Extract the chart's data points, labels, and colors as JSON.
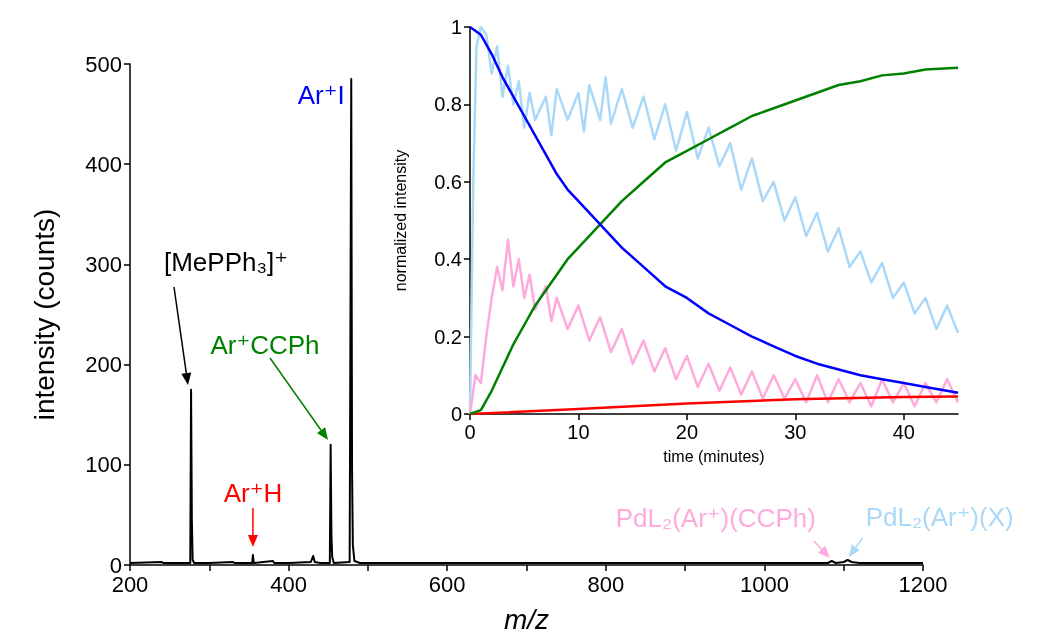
{
  "chart_data": [
    {
      "type": "line",
      "xlabel": "m/z",
      "ylabel": "intensity (counts)",
      "xlim": [
        200,
        1200
      ],
      "ylim": [
        0,
        500
      ],
      "xticks": [
        200,
        {
          "value": 300,
          "label": null
        },
        400,
        {
          "value": 500,
          "label": null
        },
        600,
        {
          "value": 700,
          "label": null
        },
        800,
        {
          "value": 900,
          "label": null
        },
        1000,
        {
          "value": 1100,
          "label": null
        },
        1200
      ],
      "yticks": [
        0,
        100,
        200,
        300,
        400,
        500
      ],
      "grid": false,
      "marker": "none",
      "line_style": "solid",
      "series": [
        {
          "color": "#000000",
          "x": [
            200,
            240,
            242,
            270,
            276,
            277,
            278,
            279,
            281,
            300,
            330,
            332,
            354,
            355,
            356,
            380,
            382,
            400,
            428,
            431,
            433,
            440,
            452,
            453,
            454,
            455,
            457,
            477,
            479,
            480,
            481,
            483,
            490,
            600,
            800,
            1000,
            1080,
            1085,
            1090,
            1100,
            1105,
            1110,
            1120,
            1200
          ],
          "values": [
            2,
            3,
            2,
            2,
            2,
            175,
            45,
            5,
            2,
            2,
            3,
            2,
            2,
            10,
            2,
            4,
            2,
            2,
            3,
            9,
            3,
            2,
            2,
            120,
            30,
            8,
            2,
            3,
            485,
            95,
            20,
            4,
            2,
            2,
            2,
            2,
            2,
            4,
            2,
            3,
            5,
            3,
            2,
            2
          ]
        }
      ],
      "annotations": [
        "[MePPh₃]⁺",
        "Ar⁺CCPh",
        {
          "text": "Ar⁺H",
          "x": 355,
          "y": 10
        },
        {
          "text": "Ar⁺I",
          "x": 479,
          "y": 485
        },
        {
          "text": "PdL₂(Ar⁺)(CCPh)",
          "x": 1085,
          "y": 4
        },
        {
          "text": "PdL₂(Ar⁺)(X)",
          "x": 1105,
          "y": 5
        }
      ]
    },
    {
      "type": "line",
      "xlabel": "time (minutes)",
      "ylabel": "normalized intensity",
      "xlim": [
        0,
        45
      ],
      "ylim": [
        0,
        1
      ],
      "xticks": [
        0,
        10,
        20,
        30,
        40
      ],
      "yticks": [
        0,
        0.2,
        0.4,
        0.6,
        0.8,
        1
      ],
      "grid": false,
      "marker": "none",
      "line_style": "solid",
      "series": [
        {
          "color": "#aad8f8",
          "x": [
            0,
            0.3,
            0.6,
            1,
            1.5,
            2,
            2.5,
            3,
            3.5,
            4,
            4.5,
            5,
            5.5,
            6,
            7,
            7.5,
            8,
            9,
            10,
            10.5,
            11,
            12,
            12.5,
            13,
            14,
            15,
            16,
            17,
            18,
            19,
            20,
            21,
            22,
            23,
            24,
            25,
            26,
            27,
            28,
            29,
            30,
            31,
            32,
            33,
            34,
            35,
            36,
            37,
            38,
            39,
            40,
            41,
            42,
            43,
            44,
            45
          ],
          "values": [
            0,
            0.6,
            0.95,
            1,
            0.98,
            0.88,
            0.95,
            0.82,
            0.9,
            0.8,
            0.86,
            0.74,
            0.83,
            0.76,
            0.82,
            0.72,
            0.84,
            0.76,
            0.83,
            0.73,
            0.85,
            0.76,
            0.87,
            0.75,
            0.84,
            0.74,
            0.82,
            0.71,
            0.8,
            0.68,
            0.78,
            0.66,
            0.74,
            0.64,
            0.7,
            0.58,
            0.66,
            0.55,
            0.6,
            0.5,
            0.56,
            0.46,
            0.52,
            0.42,
            0.48,
            0.38,
            0.42,
            0.34,
            0.39,
            0.3,
            0.34,
            0.26,
            0.3,
            0.22,
            0.28,
            0.21
          ]
        },
        {
          "color": "#ffaadd",
          "x": [
            0,
            0.5,
            1,
            1.5,
            2,
            2.5,
            3,
            3.5,
            4,
            4.5,
            5,
            5.5,
            6,
            7,
            7.5,
            8,
            9,
            10,
            11,
            12,
            13,
            14,
            15,
            16,
            17,
            18,
            19,
            20,
            21,
            22,
            23,
            24,
            25,
            26,
            27,
            28,
            29,
            30,
            31,
            32,
            33,
            34,
            35,
            36,
            37,
            38,
            39,
            40,
            41,
            42,
            43,
            44,
            45
          ],
          "values": [
            0,
            0.1,
            0.08,
            0.2,
            0.3,
            0.38,
            0.32,
            0.45,
            0.33,
            0.4,
            0.3,
            0.36,
            0.27,
            0.33,
            0.24,
            0.3,
            0.22,
            0.28,
            0.19,
            0.25,
            0.16,
            0.22,
            0.13,
            0.19,
            0.11,
            0.17,
            0.09,
            0.15,
            0.07,
            0.13,
            0.06,
            0.12,
            0.05,
            0.11,
            0.04,
            0.1,
            0.04,
            0.09,
            0.03,
            0.1,
            0.03,
            0.09,
            0.03,
            0.08,
            0.02,
            0.09,
            0.03,
            0.08,
            0.02,
            0.08,
            0.03,
            0.09,
            0.03
          ]
        },
        {
          "color": "#ff0000",
          "x": [
            0,
            10,
            20,
            30,
            40,
            45
          ],
          "values": [
            0,
            0.013,
            0.027,
            0.038,
            0.044,
            0.045
          ]
        },
        {
          "color": "#008000",
          "x": [
            0,
            1,
            2,
            3,
            4,
            5,
            6,
            7,
            8,
            9,
            10,
            12,
            14,
            16,
            18,
            20,
            22,
            24,
            26,
            28,
            30,
            32,
            34,
            36,
            38,
            40,
            42,
            45
          ],
          "values": [
            0,
            0.01,
            0.06,
            0.12,
            0.18,
            0.23,
            0.28,
            0.32,
            0.36,
            0.4,
            0.43,
            0.49,
            0.55,
            0.6,
            0.65,
            0.68,
            0.71,
            0.74,
            0.77,
            0.79,
            0.81,
            0.83,
            0.85,
            0.86,
            0.875,
            0.88,
            0.89,
            0.895
          ]
        },
        {
          "color": "#0000ff",
          "x": [
            0,
            1,
            2,
            3,
            4,
            5,
            6,
            7,
            8,
            9,
            10,
            12,
            14,
            16,
            18,
            20,
            22,
            24,
            26,
            28,
            30,
            32,
            34,
            36,
            38,
            40,
            42,
            45
          ],
          "values": [
            1,
            0.98,
            0.93,
            0.87,
            0.82,
            0.77,
            0.72,
            0.67,
            0.62,
            0.58,
            0.55,
            0.49,
            0.43,
            0.38,
            0.33,
            0.3,
            0.26,
            0.23,
            0.2,
            0.175,
            0.15,
            0.13,
            0.115,
            0.1,
            0.09,
            0.08,
            0.07,
            0.055
          ]
        }
      ]
    }
  ]
}
